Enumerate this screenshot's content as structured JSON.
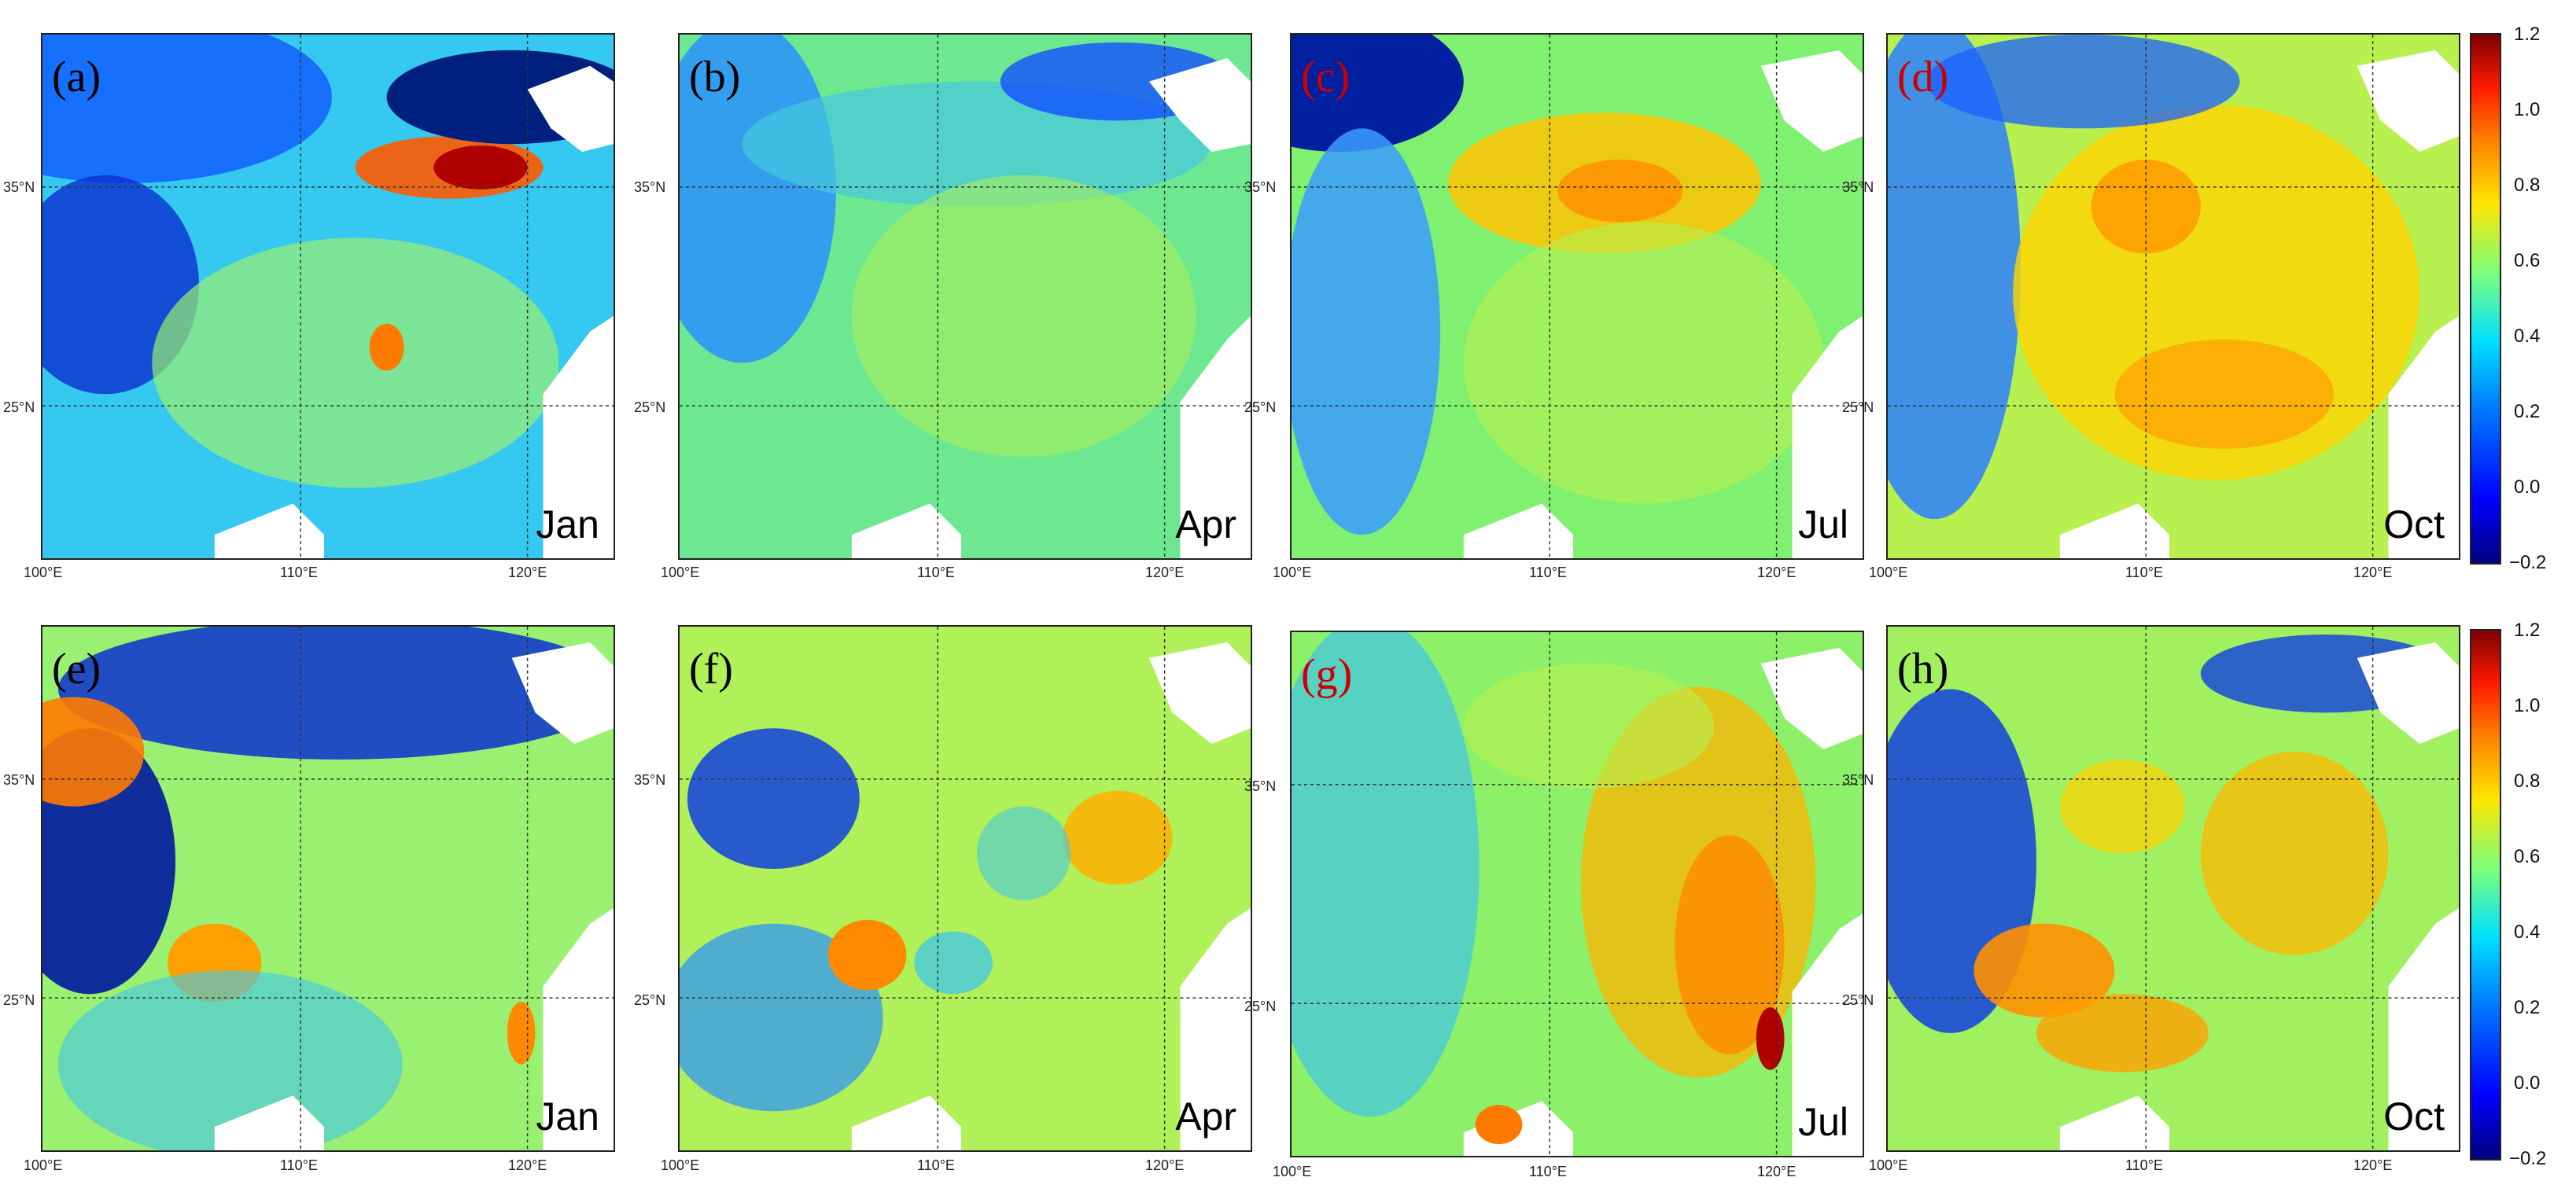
{
  "panels": [
    {
      "label": "(a)",
      "label_color": "#000000",
      "month": "Jan"
    },
    {
      "label": "(b)",
      "label_color": "#000000",
      "month": "Apr"
    },
    {
      "label": "(c)",
      "label_color": "#cc0000",
      "month": "Jul"
    },
    {
      "label": "(d)",
      "label_color": "#cc0000",
      "month": "Oct"
    },
    {
      "label": "(e)",
      "label_color": "#000000",
      "month": "Jan"
    },
    {
      "label": "(f)",
      "label_color": "#000000",
      "month": "Apr"
    },
    {
      "label": "(g)",
      "label_color": "#cc0000",
      "month": "Jul"
    },
    {
      "label": "(h)",
      "label_color": "#000000",
      "month": "Oct"
    }
  ],
  "lat_ticks": [
    "35°N",
    "25°N"
  ],
  "lon_ticks": [
    "100°E",
    "110°E",
    "120°E"
  ],
  "colorbar": {
    "ticks": [
      "1.2",
      "1.0",
      "0.8",
      "0.6",
      "0.4",
      "0.2",
      "0.0",
      "−0.2"
    ],
    "colormap": "jet",
    "range": [
      -0.2,
      1.2
    ]
  }
}
